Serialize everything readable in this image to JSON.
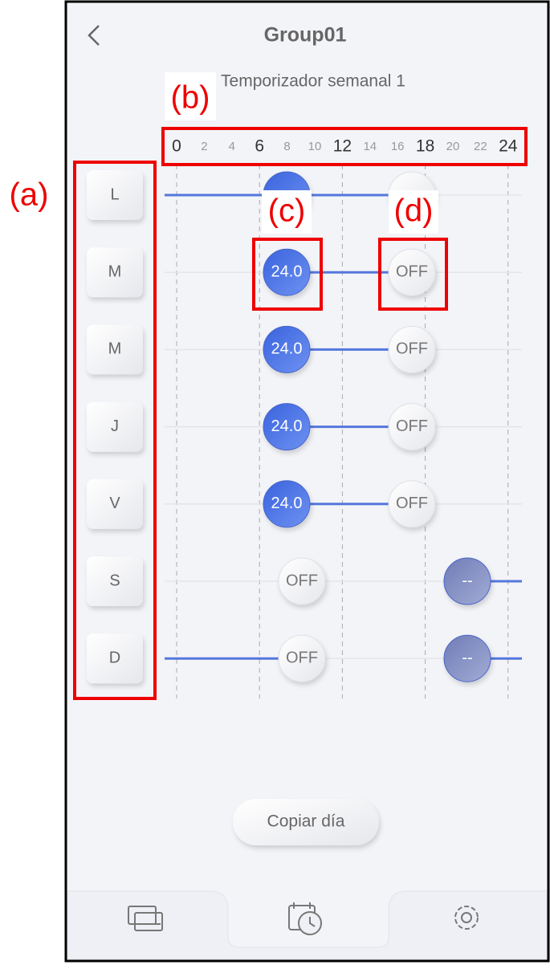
{
  "header": {
    "title": "Group01",
    "subtitle": "Temporizador semanal 1"
  },
  "timeline": {
    "hours": [
      0,
      2,
      4,
      6,
      8,
      10,
      12,
      14,
      16,
      18,
      20,
      22,
      24
    ]
  },
  "days": [
    {
      "label": "L",
      "events": []
    },
    {
      "label": "M",
      "events": [
        "24.0",
        "OFF"
      ]
    },
    {
      "label": "M",
      "events": [
        "24.0",
        "OFF"
      ]
    },
    {
      "label": "J",
      "events": [
        "24.0",
        "OFF"
      ]
    },
    {
      "label": "V",
      "events": [
        "24.0",
        "OFF"
      ]
    },
    {
      "label": "S",
      "events": [
        "OFF",
        "--"
      ]
    },
    {
      "label": "D",
      "events": [
        "OFF",
        "--"
      ]
    }
  ],
  "copy_button": "Copiar día",
  "annotations": {
    "a": "(a)",
    "b": "(b)",
    "c": "(c)",
    "d": "(d)"
  }
}
